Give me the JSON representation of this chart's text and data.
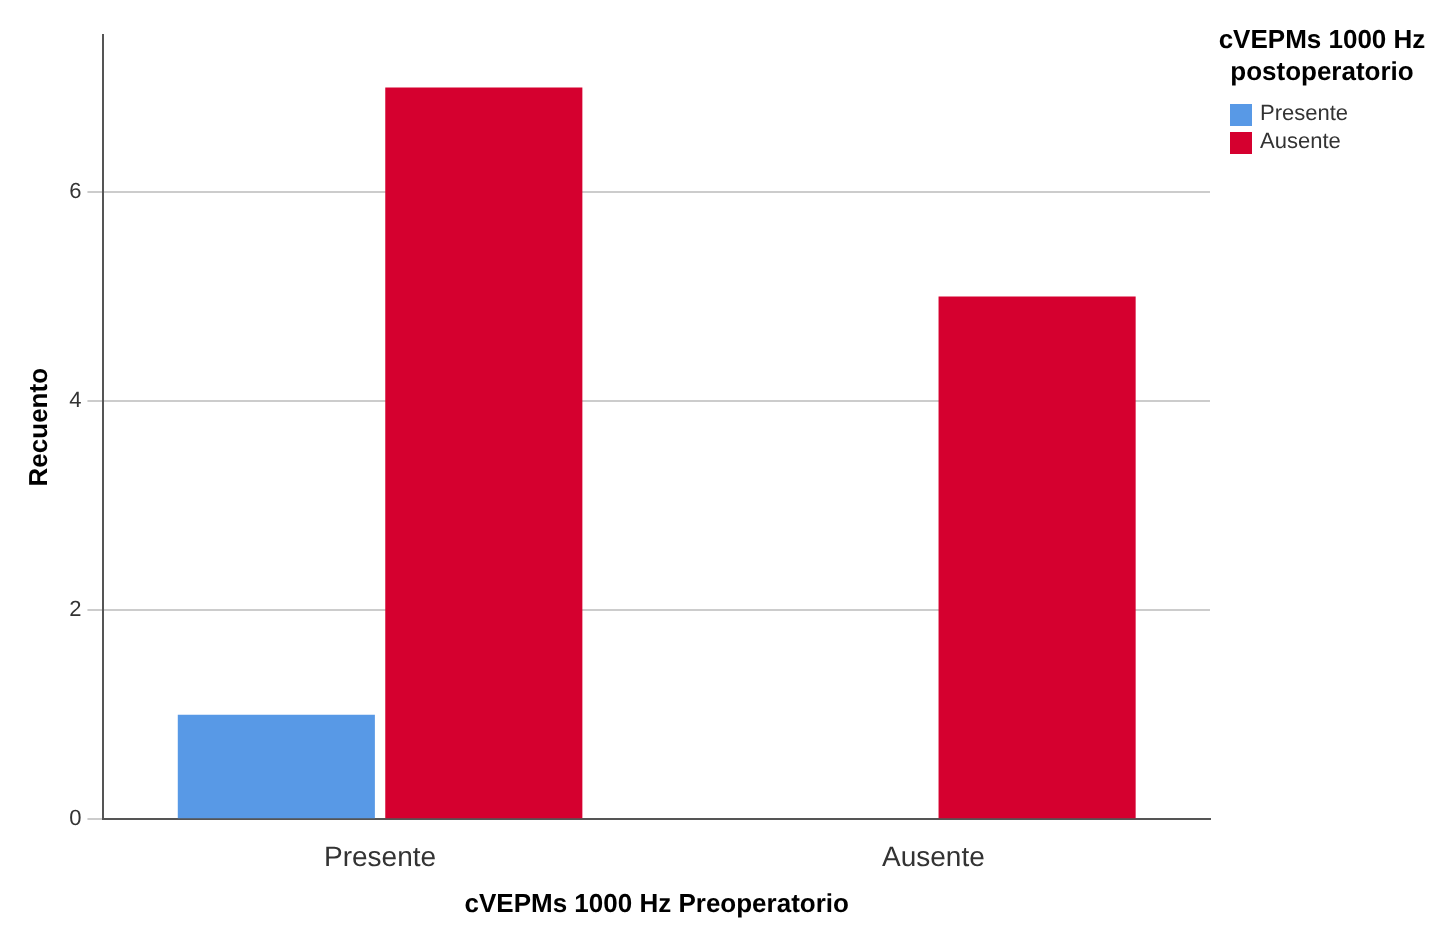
{
  "chart_data": {
    "type": "bar",
    "xlabel": "cVEPMs 1000 Hz Preoperatorio",
    "ylabel": "Recuento",
    "legend_title": "cVEPMs 1000 Hz postoperatorio",
    "categories": [
      "Presente",
      "Ausente"
    ],
    "series": [
      {
        "name": "Presente",
        "color": "#5899e6",
        "values": [
          1,
          0
        ]
      },
      {
        "name": "Ausente",
        "color": "#d5002f",
        "values": [
          7,
          5
        ]
      }
    ],
    "ylim": [
      0,
      7.5
    ],
    "yticks": [
      0,
      2,
      4,
      6
    ],
    "grid": "y",
    "legend": "top right"
  }
}
